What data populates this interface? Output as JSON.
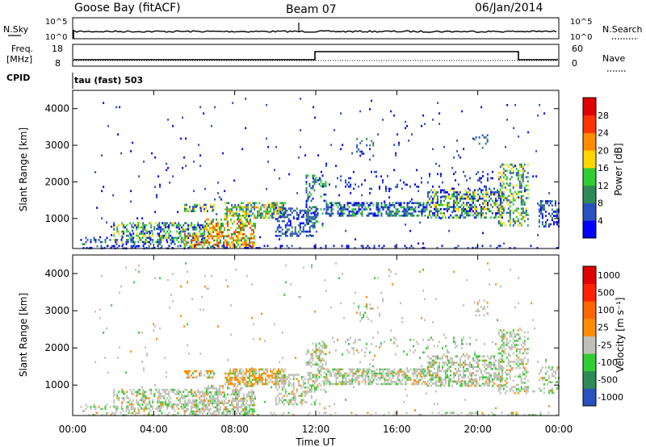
{
  "header": {
    "station": "Goose Bay (fitACF)",
    "beam": "Beam 07",
    "date": "06/Jan/2014"
  },
  "top_panels": {
    "nsky_label": "N.Sky",
    "nsky_ticks": [
      "10^5",
      "10^0"
    ],
    "nsearch_label": "N.Search",
    "nsearch_ticks": [
      "10^5",
      "10^0"
    ],
    "freq_label_line1": "Freq.",
    "freq_label_line2": "[MHz]",
    "freq_ticks": [
      "18",
      "8"
    ],
    "nave_label": "Nave",
    "nave_ticks": [
      "60",
      "0"
    ],
    "cpid_label": "CPID",
    "cpid_value": "tau (fast) 503"
  },
  "chart_data": [
    {
      "type": "heatmap",
      "name": "power",
      "ylabel": "Slant Range [km]",
      "yticks": [
        "4000",
        "3000",
        "2000",
        "1000"
      ],
      "colorbar_label": "Power [dB]",
      "colorbar_ticks": [
        "28",
        "24",
        "20",
        "16",
        "12",
        "8",
        "4"
      ],
      "colors": [
        "#0000ff",
        "#2a52be",
        "#2e8b57",
        "#32cd32",
        "#ffd700",
        "#ff8c00",
        "#ff3300",
        "#e00000"
      ],
      "ylim": [
        180,
        4500
      ]
    },
    {
      "type": "heatmap",
      "name": "velocity",
      "ylabel": "Slant Range [km]",
      "yticks": [
        "4000",
        "3000",
        "2000",
        "1000"
      ],
      "colorbar_label": "Velocity [m s⁻¹]",
      "colorbar_ticks": [
        "1000",
        "500",
        "100",
        "25",
        "-25",
        "-100",
        "-500",
        "-1000"
      ],
      "colors": [
        "#2a52be",
        "#2e8b57",
        "#32cd32",
        "#c0c0b8",
        "#ff8c00",
        "#ff6600",
        "#ff2200",
        "#e00000"
      ],
      "ylim": [
        180,
        4500
      ]
    }
  ],
  "xaxis": {
    "label": "Time UT",
    "ticks": [
      "00:00",
      "04:00",
      "08:00",
      "12:00",
      "16:00",
      "20:00",
      "00:00"
    ]
  }
}
